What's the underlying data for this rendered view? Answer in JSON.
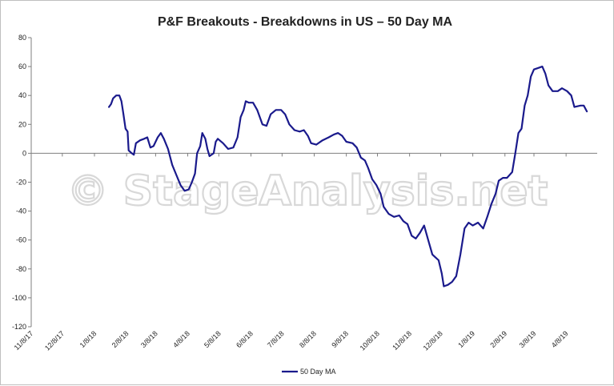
{
  "chart_data": {
    "type": "line",
    "title": "P&F Breakouts - Breakdowns in US – 50 Day MA",
    "xlabel": "",
    "ylabel": "",
    "ylim": [
      -120,
      80
    ],
    "y_ticks": [
      80,
      60,
      40,
      20,
      0,
      -20,
      -40,
      -60,
      -80,
      -100,
      -120
    ],
    "x_range": [
      "2017-11-08",
      "2019-05-08"
    ],
    "x_tick_labels": [
      "11/8/17",
      "12/8/17",
      "1/8/18",
      "2/8/18",
      "3/8/18",
      "4/8/18",
      "5/8/18",
      "6/8/18",
      "7/8/18",
      "8/8/18",
      "9/8/18",
      "10/8/18",
      "11/8/18",
      "12/8/18",
      "1/8/19",
      "2/8/19",
      "3/8/19",
      "4/8/19"
    ],
    "x_tick_dates": [
      "2017-11-08",
      "2017-12-08",
      "2018-01-08",
      "2018-02-08",
      "2018-03-08",
      "2018-04-08",
      "2018-05-08",
      "2018-06-08",
      "2018-07-08",
      "2018-08-08",
      "2018-09-08",
      "2018-10-08",
      "2018-11-08",
      "2018-12-08",
      "2019-01-08",
      "2019-02-08",
      "2019-03-08",
      "2019-04-08"
    ],
    "grid": false,
    "legend_position": "bottom",
    "series": [
      {
        "name": "50 Day MA",
        "color": "#1a1a8c",
        "points": [
          [
            "2018-01-22",
            32
          ],
          [
            "2018-01-24",
            34
          ],
          [
            "2018-01-26",
            38
          ],
          [
            "2018-01-29",
            40
          ],
          [
            "2018-02-01",
            40
          ],
          [
            "2018-02-03",
            36
          ],
          [
            "2018-02-05",
            27
          ],
          [
            "2018-02-07",
            17
          ],
          [
            "2018-02-09",
            15
          ],
          [
            "2018-02-10",
            2
          ],
          [
            "2018-02-13",
            0
          ],
          [
            "2018-02-15",
            -1
          ],
          [
            "2018-02-17",
            7
          ],
          [
            "2018-02-21",
            9
          ],
          [
            "2018-02-25",
            10
          ],
          [
            "2018-02-28",
            11
          ],
          [
            "2018-03-03",
            4
          ],
          [
            "2018-03-06",
            5
          ],
          [
            "2018-03-10",
            11
          ],
          [
            "2018-03-13",
            14
          ],
          [
            "2018-03-16",
            10
          ],
          [
            "2018-03-20",
            3
          ],
          [
            "2018-03-24",
            -8
          ],
          [
            "2018-03-28",
            -15
          ],
          [
            "2018-04-01",
            -22
          ],
          [
            "2018-04-05",
            -26
          ],
          [
            "2018-04-09",
            -25
          ],
          [
            "2018-04-12",
            -20
          ],
          [
            "2018-04-15",
            -14
          ],
          [
            "2018-04-17",
            0
          ],
          [
            "2018-04-20",
            5
          ],
          [
            "2018-04-22",
            14
          ],
          [
            "2018-04-25",
            10
          ],
          [
            "2018-04-27",
            3
          ],
          [
            "2018-04-29",
            -2
          ],
          [
            "2018-05-03",
            0
          ],
          [
            "2018-05-05",
            8
          ],
          [
            "2018-05-07",
            10
          ],
          [
            "2018-05-12",
            7
          ],
          [
            "2018-05-17",
            3
          ],
          [
            "2018-05-22",
            4
          ],
          [
            "2018-05-26",
            11
          ],
          [
            "2018-05-29",
            25
          ],
          [
            "2018-06-01",
            30
          ],
          [
            "2018-06-03",
            36
          ],
          [
            "2018-06-06",
            35
          ],
          [
            "2018-06-10",
            35
          ],
          [
            "2018-06-14",
            30
          ],
          [
            "2018-06-19",
            20
          ],
          [
            "2018-06-23",
            19
          ],
          [
            "2018-06-27",
            27
          ],
          [
            "2018-07-02",
            30
          ],
          [
            "2018-07-07",
            30
          ],
          [
            "2018-07-11",
            27
          ],
          [
            "2018-07-15",
            20
          ],
          [
            "2018-07-20",
            16
          ],
          [
            "2018-07-25",
            15
          ],
          [
            "2018-07-29",
            16
          ],
          [
            "2018-08-02",
            12
          ],
          [
            "2018-08-05",
            7
          ],
          [
            "2018-08-10",
            6
          ],
          [
            "2018-08-16",
            9
          ],
          [
            "2018-08-22",
            11
          ],
          [
            "2018-08-27",
            13
          ],
          [
            "2018-08-31",
            14
          ],
          [
            "2018-09-04",
            12
          ],
          [
            "2018-09-08",
            8
          ],
          [
            "2018-09-14",
            7
          ],
          [
            "2018-09-18",
            4
          ],
          [
            "2018-09-22",
            -3
          ],
          [
            "2018-09-26",
            -5
          ],
          [
            "2018-09-29",
            -10
          ],
          [
            "2018-10-03",
            -18
          ],
          [
            "2018-10-07",
            -22
          ],
          [
            "2018-10-11",
            -28
          ],
          [
            "2018-10-14",
            -37
          ],
          [
            "2018-10-19",
            -42
          ],
          [
            "2018-10-24",
            -44
          ],
          [
            "2018-10-29",
            -43
          ],
          [
            "2018-11-02",
            -47
          ],
          [
            "2018-11-06",
            -49
          ],
          [
            "2018-11-10",
            -57
          ],
          [
            "2018-11-14",
            -59
          ],
          [
            "2018-11-18",
            -55
          ],
          [
            "2018-11-22",
            -50
          ],
          [
            "2018-11-26",
            -60
          ],
          [
            "2018-11-30",
            -70
          ],
          [
            "2018-12-03",
            -72
          ],
          [
            "2018-12-06",
            -74
          ],
          [
            "2018-12-09",
            -83
          ],
          [
            "2018-12-11",
            -92
          ],
          [
            "2018-12-15",
            -91
          ],
          [
            "2018-12-19",
            -89
          ],
          [
            "2018-12-23",
            -85
          ],
          [
            "2018-12-27",
            -70
          ],
          [
            "2018-12-31",
            -52
          ],
          [
            "2019-01-04",
            -48
          ],
          [
            "2019-01-08",
            -50
          ],
          [
            "2019-01-13",
            -48
          ],
          [
            "2019-01-18",
            -52
          ],
          [
            "2019-01-22",
            -44
          ],
          [
            "2019-01-26",
            -35
          ],
          [
            "2019-01-30",
            -28
          ],
          [
            "2019-02-02",
            -19
          ],
          [
            "2019-02-06",
            -17
          ],
          [
            "2019-02-10",
            -17
          ],
          [
            "2019-02-15",
            -13
          ],
          [
            "2019-02-18",
            0
          ],
          [
            "2019-02-21",
            14
          ],
          [
            "2019-02-24",
            17
          ],
          [
            "2019-02-27",
            33
          ],
          [
            "2019-03-02",
            40
          ],
          [
            "2019-03-05",
            53
          ],
          [
            "2019-03-08",
            58
          ],
          [
            "2019-03-12",
            59
          ],
          [
            "2019-03-16",
            60
          ],
          [
            "2019-03-19",
            55
          ],
          [
            "2019-03-22",
            47
          ],
          [
            "2019-03-26",
            43
          ],
          [
            "2019-03-31",
            43
          ],
          [
            "2019-04-04",
            45
          ],
          [
            "2019-04-09",
            43
          ],
          [
            "2019-04-13",
            40
          ],
          [
            "2019-04-16",
            32
          ],
          [
            "2019-04-22",
            33
          ],
          [
            "2019-04-25",
            33
          ],
          [
            "2019-04-28",
            29
          ]
        ]
      }
    ]
  },
  "watermark": "© StageAnalysis.net"
}
